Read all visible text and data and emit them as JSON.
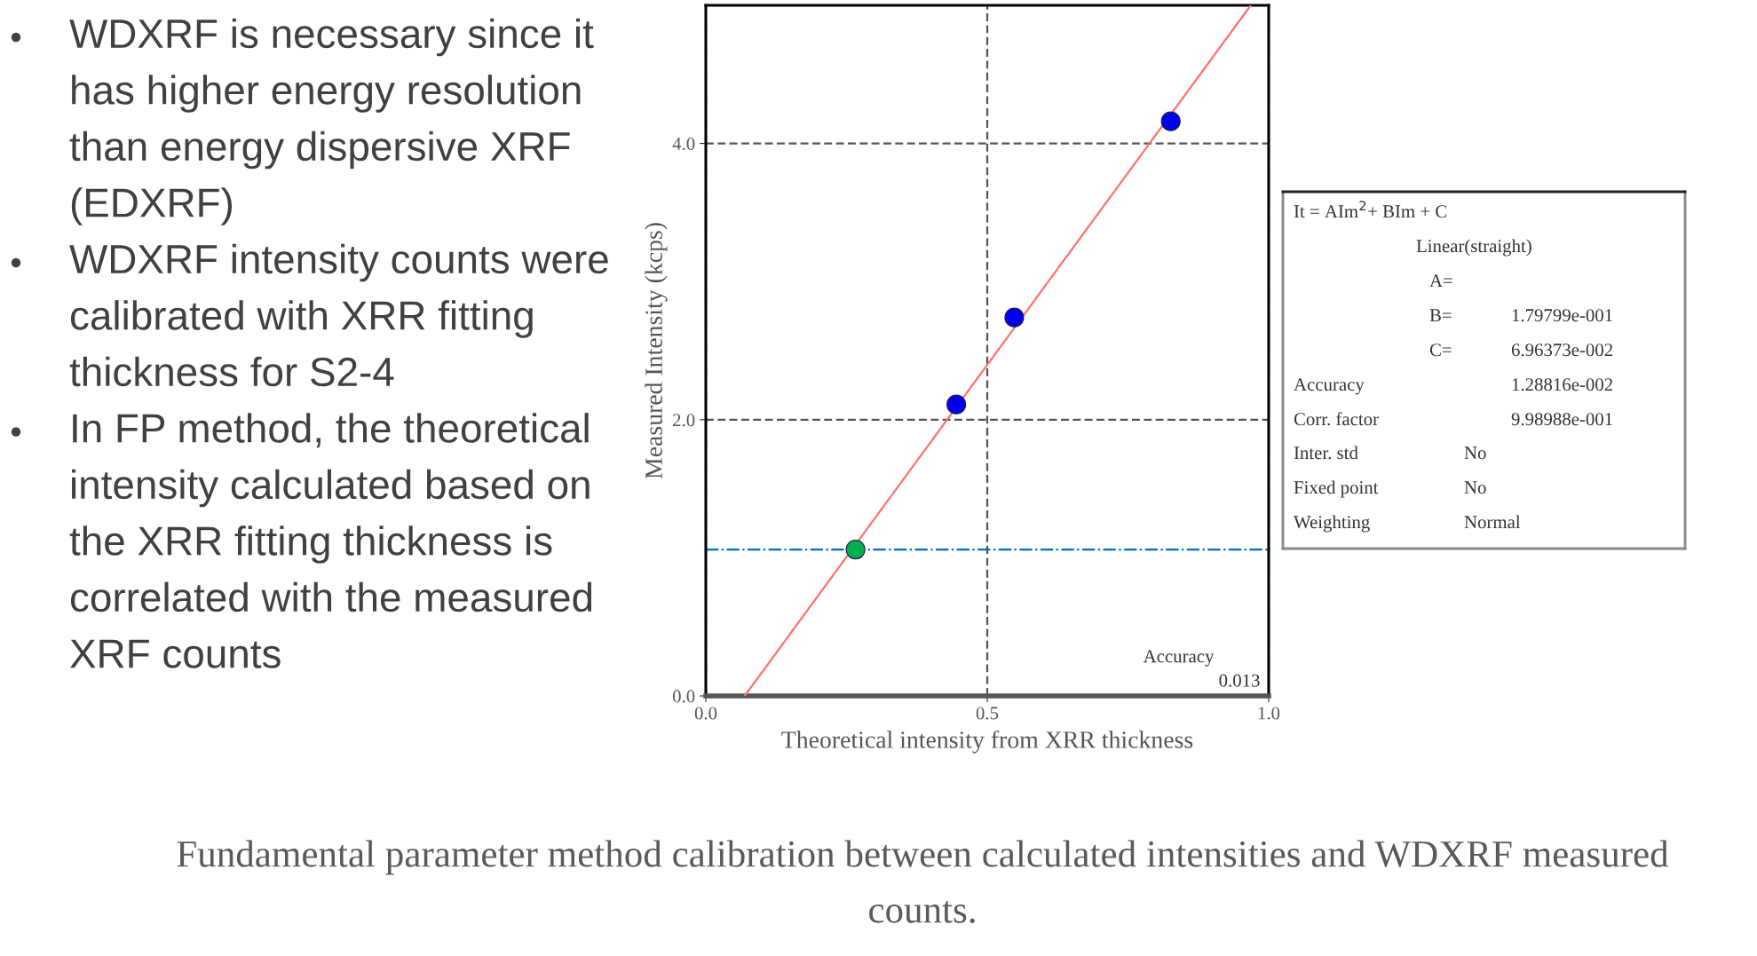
{
  "chart_data": {
    "type": "scatter",
    "xlabel": "Theoretical intensity from XRR thickness",
    "ylabel": "Measured Intensity (kcps)",
    "xlim": [
      0,
      1.0
    ],
    "xticks": [
      {
        "value": 0,
        "label": "0.0"
      },
      {
        "value": 0.5,
        "label": "0.5"
      },
      {
        "value": 1.0,
        "label": "1.0"
      }
    ],
    "ylim": [
      0,
      5.0
    ],
    "yticks": [
      {
        "value": 0,
        "label": "0.0"
      },
      {
        "value": 2.0,
        "label": "2.0"
      },
      {
        "value": 4.0,
        "label": "4.0"
      }
    ],
    "grid": true,
    "marker": "circle",
    "series": [
      {
        "type": "line",
        "color": "#ff7070",
        "x": [
          0.069,
          0.968
        ],
        "values": [
          0,
          5.0
        ],
        "marker": "none",
        "line_style": "solid"
      },
      {
        "color": "#0000ee",
        "x": [
          0.445,
          0.548,
          0.826
        ],
        "values": [
          2.11,
          2.74,
          4.16
        ]
      },
      {
        "color": "#00b050",
        "x": [
          0.266
        ],
        "values": [
          1.06
        ]
      }
    ],
    "ref_lines": [
      {
        "axis": "y",
        "value": 1.06,
        "color": "#0070c0",
        "line_style": "dashdot"
      }
    ],
    "annotations": [
      "WDXRF is necessary since it has higher energy resolution than energy dispersive XRF (EDXRF)",
      "WDXRF intensity counts were calibrated with XRR fitting thickness for S2-4",
      "In FP method, the theoretical intensity calculated based on the XRR fitting thickness is correlated with the measured XRF counts",
      "Accuracy",
      "0.013",
      "Fundamental parameter method calibration between calculated intensities and WDXRF measured counts.",
      "It = AIm$^{2}$+ BIm + C",
      "Linear(straight)",
      "A=",
      "B=",
      "1.79799e-001",
      "C=",
      "6.96373e-002",
      "Accuracy",
      "1.28816e-002",
      "Corr. factor",
      "9.98988e-001",
      "Inter. std",
      "No",
      "Fixed point",
      "No",
      "Weighting",
      "Normal"
    ]
  }
}
